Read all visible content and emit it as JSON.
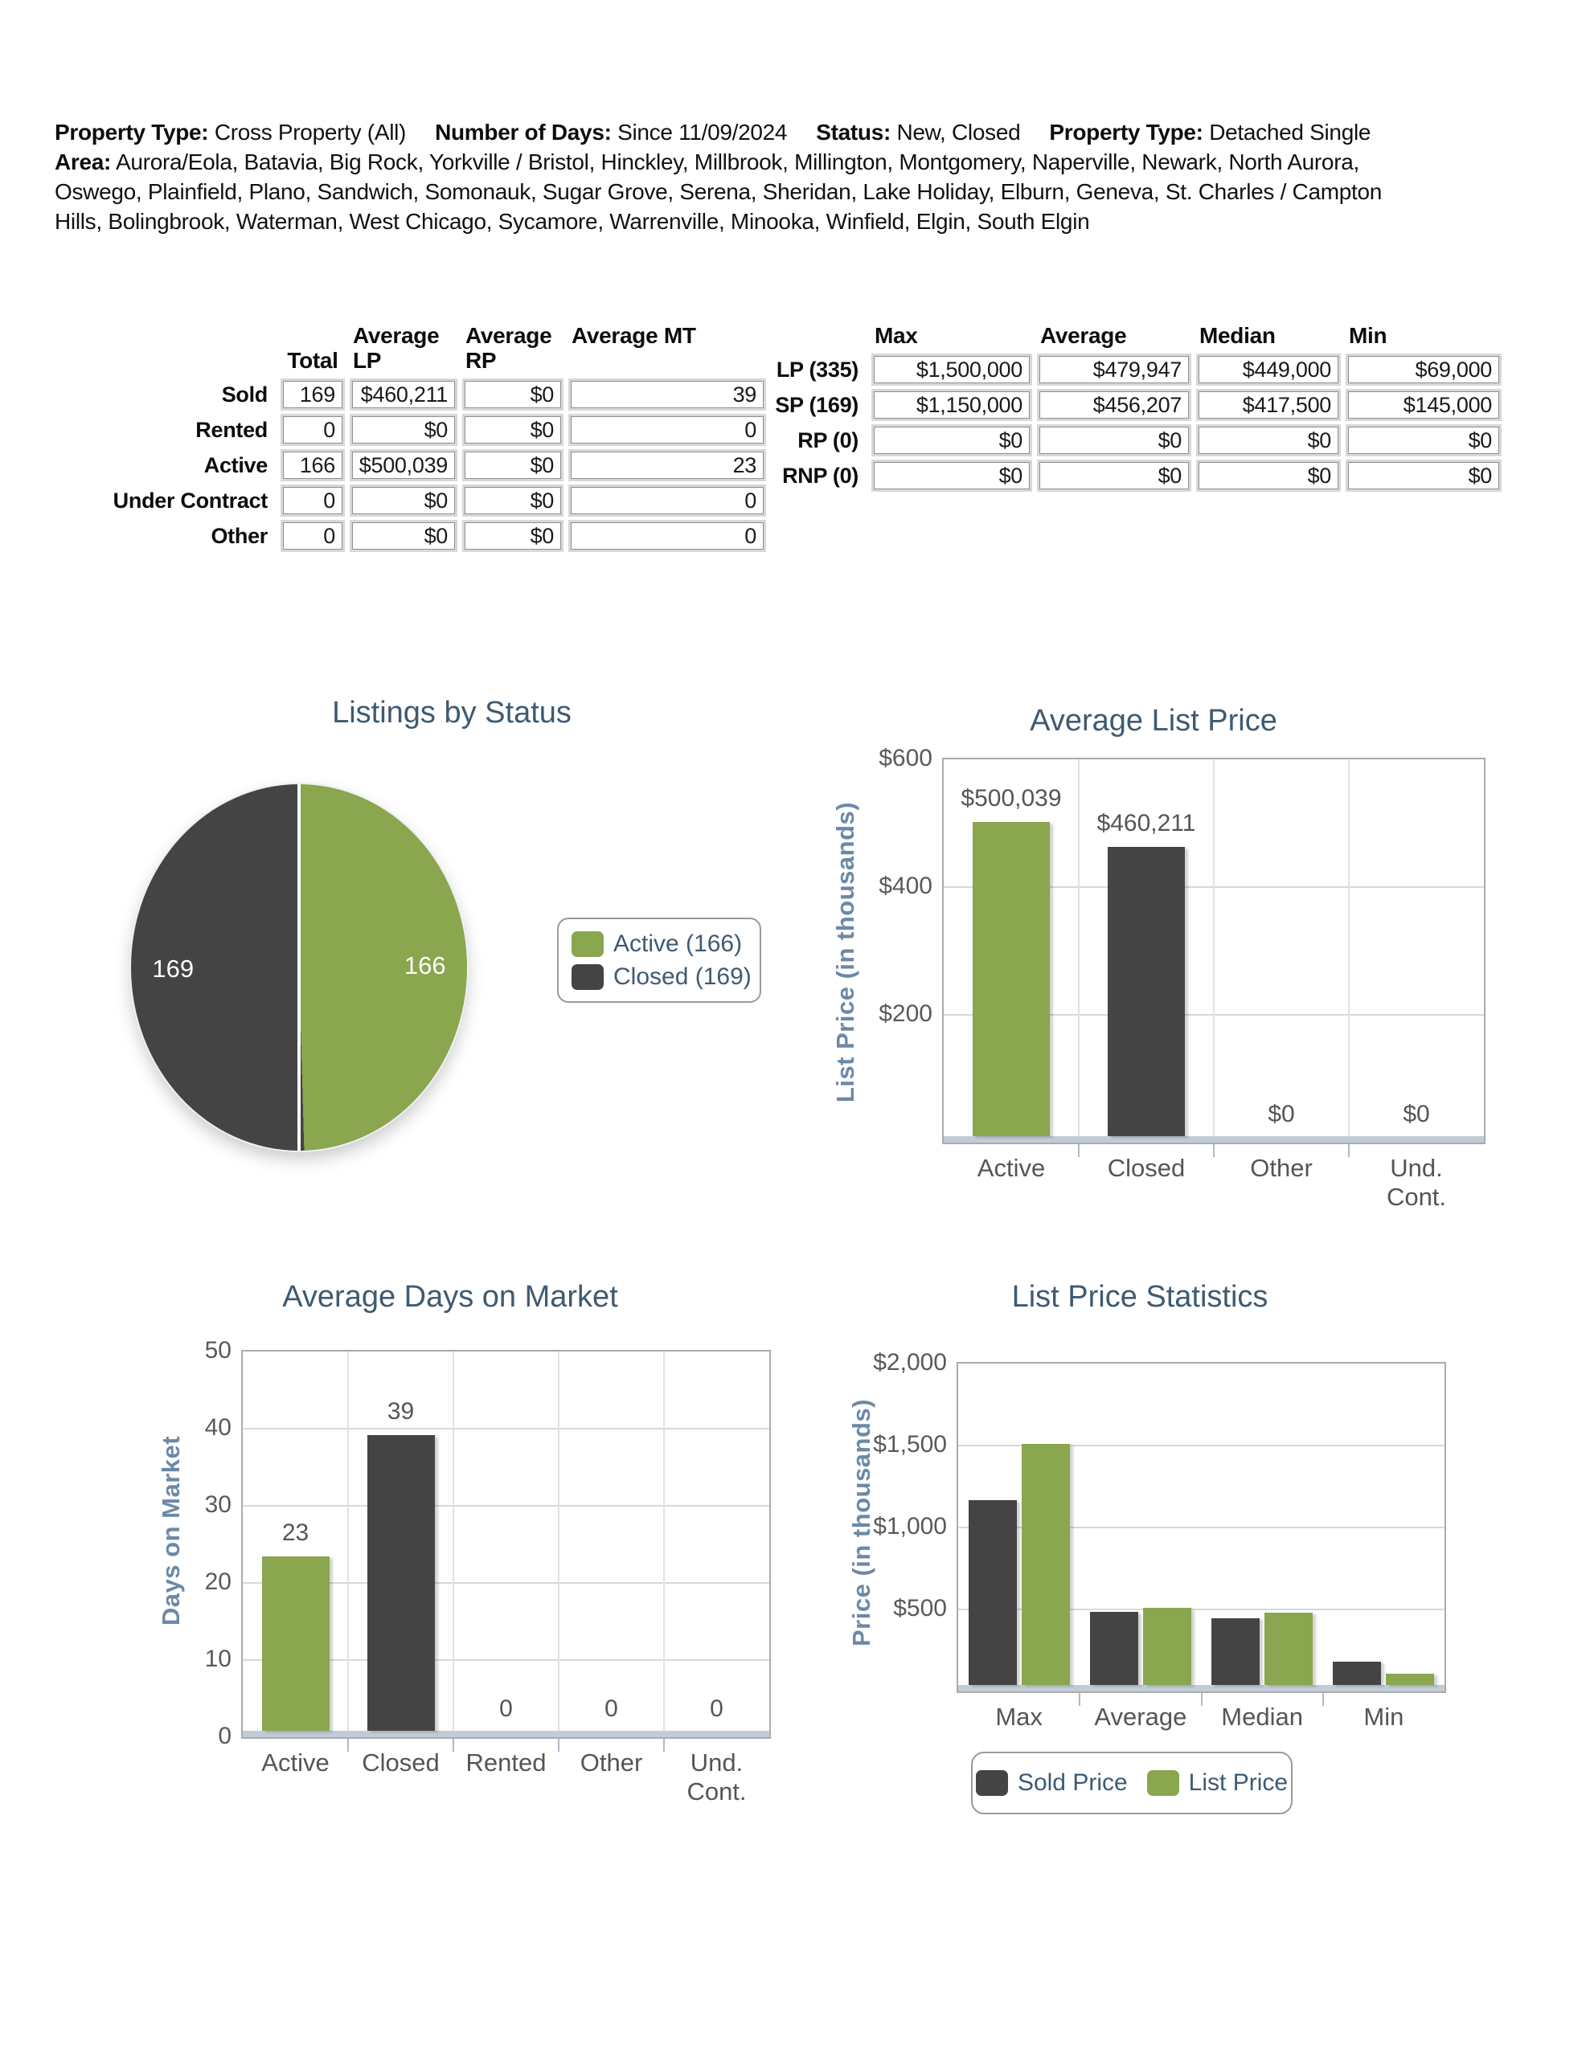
{
  "colors": {
    "green": "#8AA64E",
    "dark_gray": "#444444",
    "title_slate": "#3E5A73",
    "axis_label_blue": "#6B89A6",
    "tick_gray": "#595959",
    "value_gray": "#555555",
    "grid_line": "#D8D8D8",
    "plot_border": "#ABABAB",
    "axis_strip_blue": "#C1CCD7",
    "legend_border": "#9A9A9A",
    "pie_label_white": "#FFFFFF"
  },
  "header": {
    "criteria": [
      {
        "label": "Property Type:",
        "value": "Cross Property (All)"
      },
      {
        "label": "Number of Days:",
        "value": "Since 11/09/2024"
      },
      {
        "label": "Status:",
        "value": "New, Closed"
      },
      {
        "label": "Property Type:",
        "value": "Detached Single"
      }
    ],
    "area_label": "Area:",
    "area_lines": [
      "Aurora/Eola, Batavia, Big Rock, Yorkville / Bristol, Hinckley, Millbrook, Millington, Montgomery, Naperville, Newark, North Aurora,",
      "Oswego, Plainfield, Plano, Sandwich, Somonauk, Sugar Grove, Serena, Sheridan, Lake Holiday, Elburn, Geneva, St. Charles / Campton",
      "Hills, Bolingbrook, Waterman, West Chicago, Sycamore, Warrenville, Minooka, Winfield, Elgin, South Elgin"
    ]
  },
  "status_table": {
    "columns": [
      "Total",
      "Average LP",
      "Average RP",
      "Average MT"
    ],
    "rows": [
      {
        "label": "Sold",
        "cells": [
          "169",
          "$460,211",
          "$0",
          "39"
        ]
      },
      {
        "label": "Rented",
        "cells": [
          "0",
          "$0",
          "$0",
          "0"
        ]
      },
      {
        "label": "Active",
        "cells": [
          "166",
          "$500,039",
          "$0",
          "23"
        ]
      },
      {
        "label": "Under Contract",
        "cells": [
          "0",
          "$0",
          "$0",
          "0"
        ]
      },
      {
        "label": "Other",
        "cells": [
          "0",
          "$0",
          "$0",
          "0"
        ]
      }
    ]
  },
  "price_table": {
    "columns": [
      "Max",
      "Average",
      "Median",
      "Min"
    ],
    "rows": [
      {
        "label": "LP (335)",
        "cells": [
          "$1,500,000",
          "$479,947",
          "$449,000",
          "$69,000"
        ]
      },
      {
        "label": "SP (169)",
        "cells": [
          "$1,150,000",
          "$456,207",
          "$417,500",
          "$145,000"
        ]
      },
      {
        "label": "RP (0)",
        "cells": [
          "$0",
          "$0",
          "$0",
          "$0"
        ]
      },
      {
        "label": "RNP (0)",
        "cells": [
          "$0",
          "$0",
          "$0",
          "$0"
        ]
      }
    ]
  },
  "chart_data": [
    {
      "id": "listings_by_status",
      "type": "pie",
      "title": "Listings by Status",
      "slices": [
        {
          "label": "Active",
          "value": 166,
          "color_key": "green",
          "value_label": "166"
        },
        {
          "label": "Closed",
          "value": 169,
          "color_key": "dark_gray",
          "value_label": "169"
        }
      ],
      "legend": [
        "Active (166)",
        "Closed (169)"
      ],
      "legend_position": "right"
    },
    {
      "id": "average_list_price",
      "type": "bar",
      "title": "Average List Price",
      "xlabel": "",
      "ylabel": "List Price (in thousands)",
      "ylim": [
        0,
        600
      ],
      "grid": true,
      "yticks": [
        {
          "value": 600,
          "label": "$600"
        },
        {
          "value": 400,
          "label": "$400"
        },
        {
          "value": 200,
          "label": "$200"
        }
      ],
      "categories": [
        "Active",
        "Closed",
        "Other",
        "Und.\nCont."
      ],
      "values": [
        500.039,
        460.211,
        0,
        0
      ],
      "value_labels": [
        "$500,039",
        "$460,211",
        "$0",
        "$0"
      ],
      "bar_color_keys": [
        "green",
        "dark_gray",
        "green",
        "dark_gray"
      ]
    },
    {
      "id": "average_days_on_market",
      "type": "bar",
      "title": "Average Days on Market",
      "xlabel": "",
      "ylabel": "Days on Market",
      "ylim": [
        0,
        50
      ],
      "grid": true,
      "yticks": [
        {
          "value": 50,
          "label": "50"
        },
        {
          "value": 40,
          "label": "40"
        },
        {
          "value": 30,
          "label": "30"
        },
        {
          "value": 20,
          "label": "20"
        },
        {
          "value": 10,
          "label": "10"
        },
        {
          "value": 0,
          "label": "0"
        }
      ],
      "categories": [
        "Active",
        "Closed",
        "Rented",
        "Other",
        "Und.\nCont."
      ],
      "values": [
        23,
        39,
        0,
        0,
        0
      ],
      "value_labels": [
        "23",
        "39",
        "0",
        "0",
        "0"
      ],
      "bar_color_keys": [
        "green",
        "dark_gray",
        "green",
        "green",
        "dark_gray"
      ]
    },
    {
      "id": "list_price_statistics",
      "type": "grouped_bar",
      "title": "List Price Statistics",
      "xlabel": "",
      "ylabel": "Price (in thousands)",
      "ylim": [
        0,
        2000
      ],
      "grid": true,
      "yticks": [
        {
          "value": 2000,
          "label": "$2,000"
        },
        {
          "value": 1500,
          "label": "$1,500"
        },
        {
          "value": 1000,
          "label": "$1,000"
        },
        {
          "value": 500,
          "label": "$500"
        }
      ],
      "categories": [
        "Max",
        "Average",
        "Median",
        "Min"
      ],
      "series": [
        {
          "name": "Sold Price",
          "color_key": "dark_gray",
          "values": [
            1150,
            456.207,
            417.5,
            145
          ]
        },
        {
          "name": "List Price",
          "color_key": "green",
          "values": [
            1500,
            479.947,
            449,
            69
          ]
        }
      ],
      "legend": [
        "Sold Price",
        "List Price"
      ],
      "legend_position": "bottom"
    }
  ]
}
